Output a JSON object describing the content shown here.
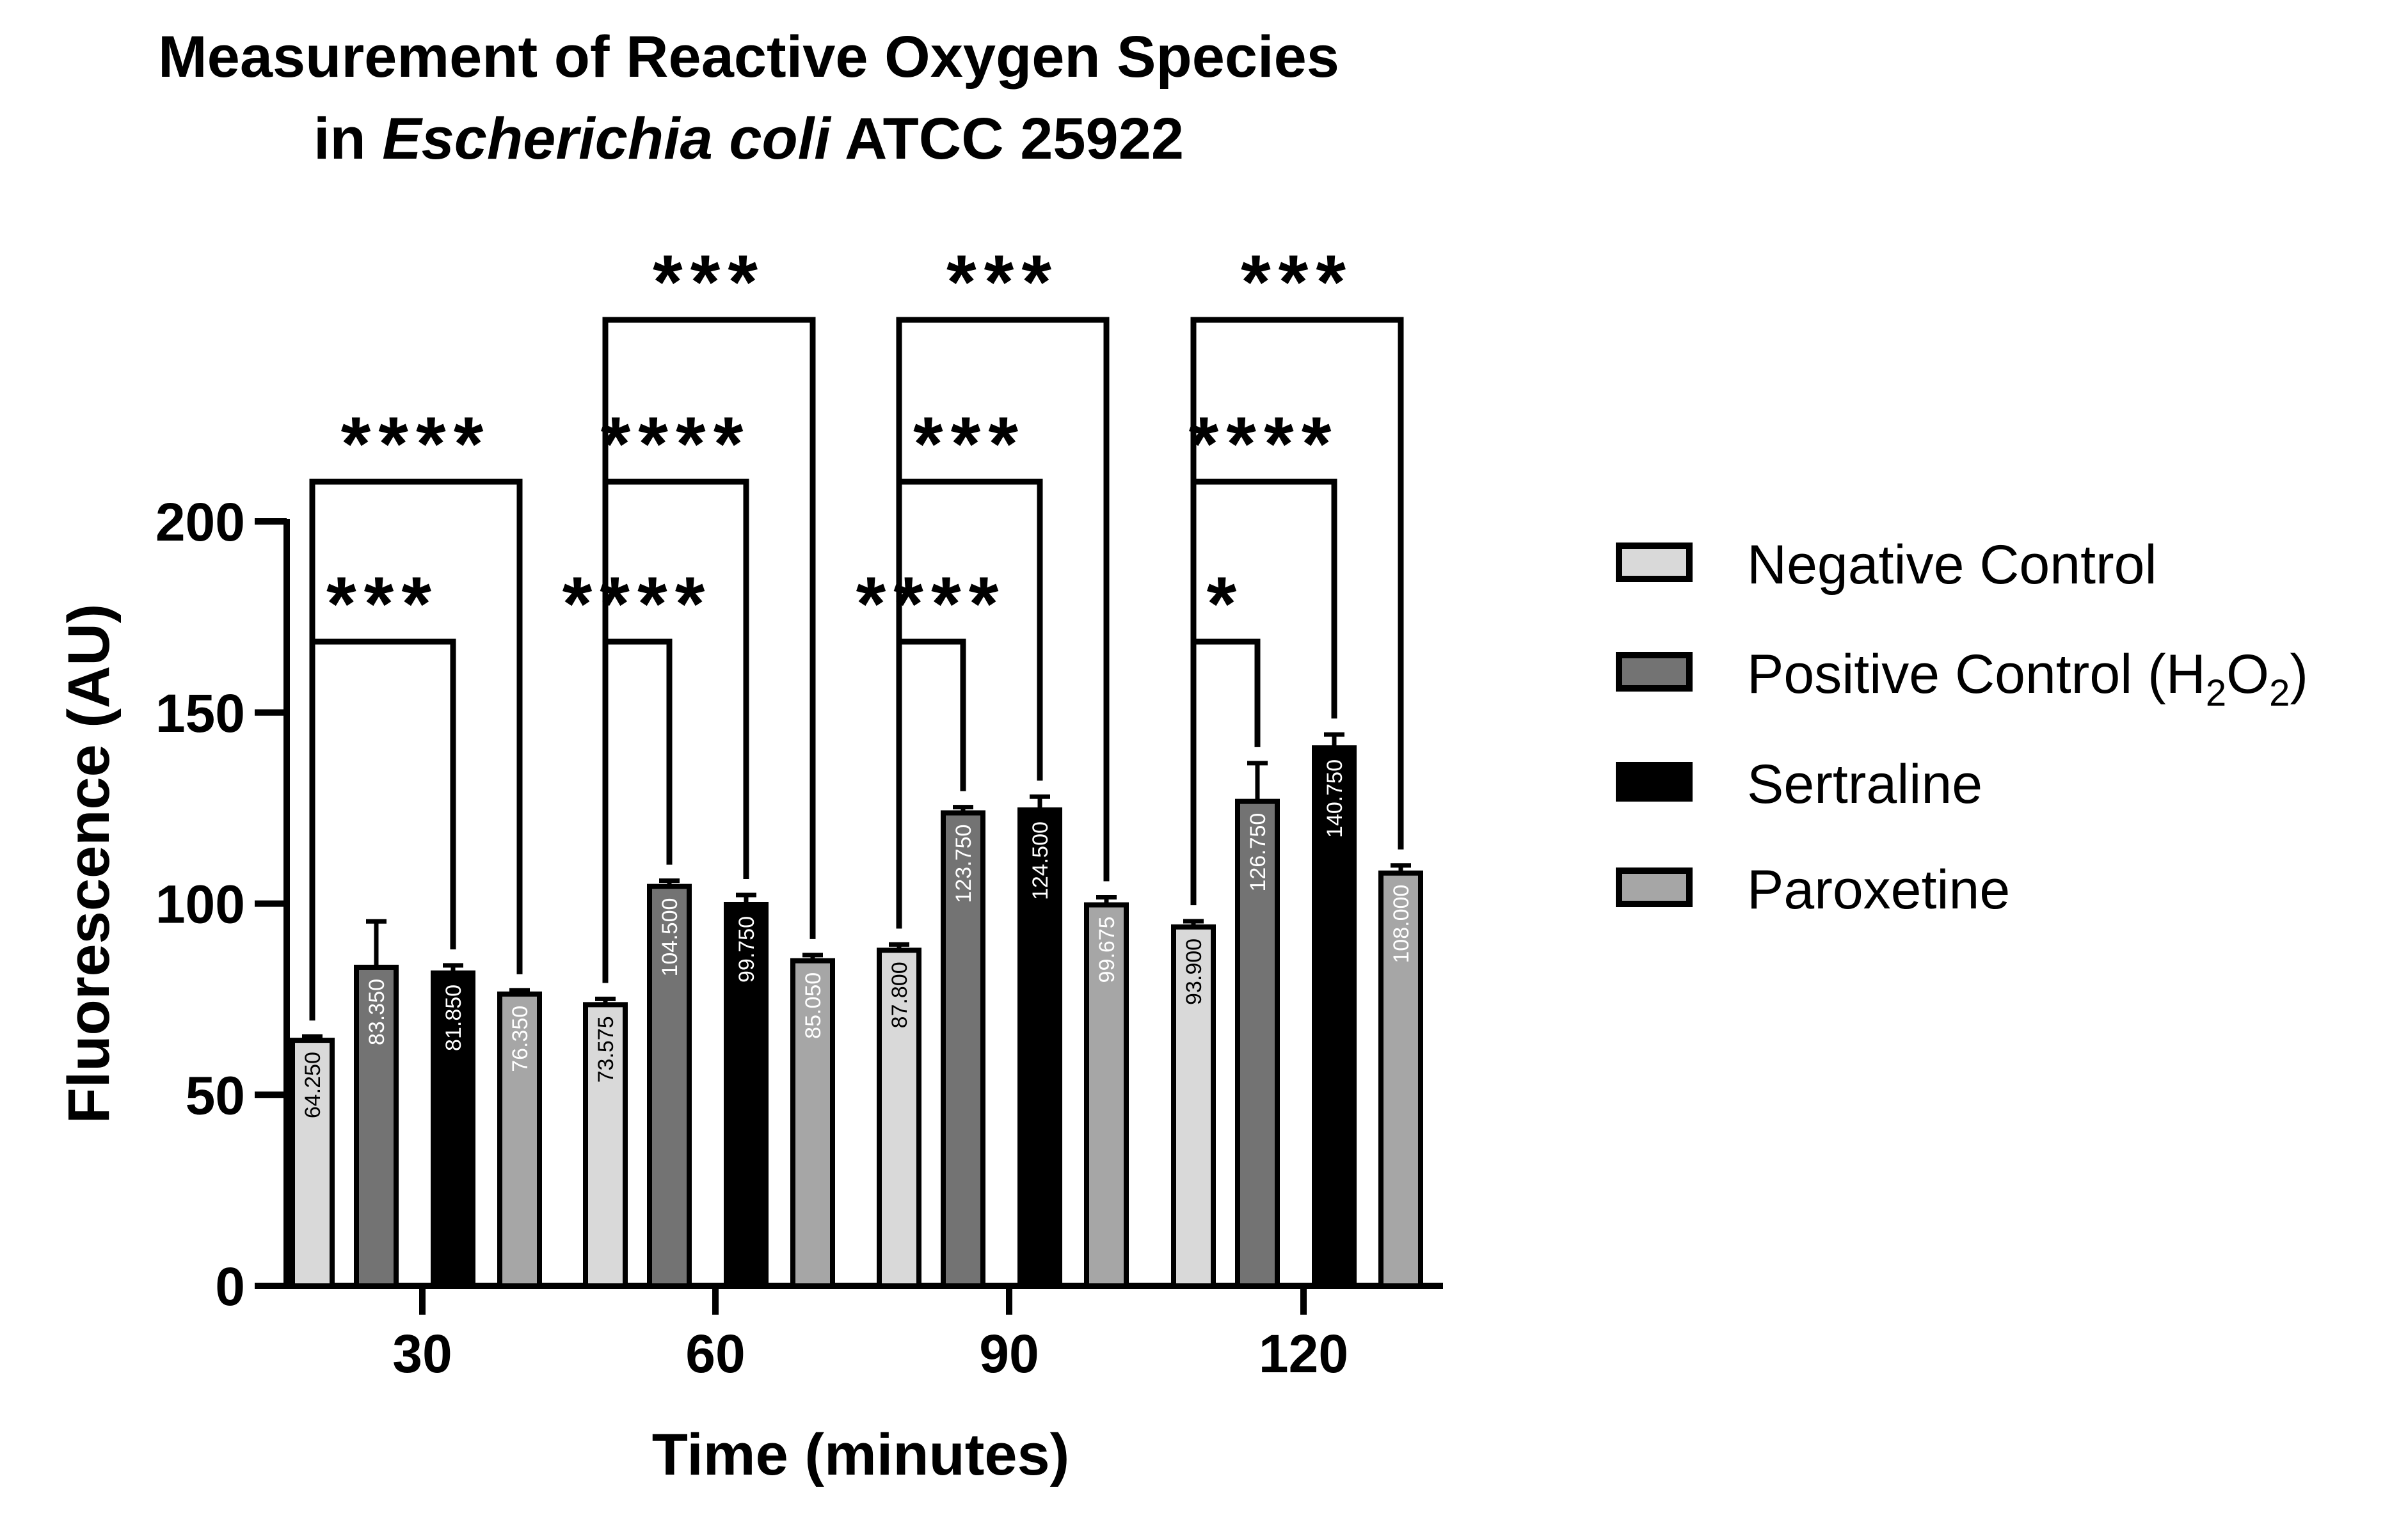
{
  "chart_data": {
    "type": "bar",
    "title": "Measurement of Reactive Oxygen Species",
    "subtitle_prefix": "in ",
    "subtitle_italic": "Escherichia coli",
    "subtitle_suffix": " ATCC 25922",
    "xlabel": "Time (minutes)",
    "ylabel": "Fluorescence (AU)",
    "ylim": [
      0,
      200
    ],
    "yticks": [
      "0",
      "50",
      "100",
      "150",
      "200"
    ],
    "categories": [
      "30",
      "60",
      "90",
      "120"
    ],
    "series": [
      {
        "name": "Negative Control",
        "color": "#d9d9d9",
        "values": [
          64.25,
          73.575,
          87.8,
          93.9
        ],
        "errors": [
          1,
          1.5,
          1.5,
          1.5
        ],
        "labels": [
          "64.250",
          "73.575",
          "87.800",
          "93.900"
        ]
      },
      {
        "name": "Positive Control (H2O2)",
        "name_main": "Positive Control (H",
        "name_sub1": "2",
        "name_mid": "O",
        "name_sub2": "2",
        "name_end": ")",
        "color": "#737373",
        "values": [
          83.35,
          104.5,
          123.75,
          126.75
        ],
        "errors": [
          12,
          1.5,
          1.5,
          10
        ],
        "labels": [
          "83.350",
          "104.500",
          "123.750",
          "126.750"
        ]
      },
      {
        "name": "Sertraline",
        "color": "#000000",
        "values": [
          81.85,
          99.75,
          124.5,
          140.75
        ],
        "errors": [
          2,
          2.5,
          3.5,
          3.5
        ],
        "labels": [
          "81.850",
          "99.750",
          "124.500",
          "140.750"
        ]
      },
      {
        "name": "Paroxetine",
        "color": "#a6a6a6",
        "values": [
          76.35,
          85.05,
          99.675,
          108.0
        ],
        "errors": [
          1,
          1.5,
          2,
          2
        ],
        "labels": [
          "76.350",
          "85.050",
          "99.675",
          "108.000"
        ]
      }
    ],
    "legend_position": "right",
    "significance": [
      {
        "group": 0,
        "from": 0,
        "to": 2,
        "level": 1,
        "label": "***"
      },
      {
        "group": 0,
        "from": 0,
        "to": 3,
        "level": 2,
        "label": "****"
      },
      {
        "group": 1,
        "from": 0,
        "to": 1,
        "level": 1,
        "label": "****"
      },
      {
        "group": 1,
        "from": 0,
        "to": 2,
        "level": 2,
        "label": "****"
      },
      {
        "group": 1,
        "from": 0,
        "to": 3,
        "level": 3,
        "label": "***"
      },
      {
        "group": 2,
        "from": 0,
        "to": 1,
        "level": 1,
        "label": "****"
      },
      {
        "group": 2,
        "from": 0,
        "to": 2,
        "level": 2,
        "label": "***"
      },
      {
        "group": 2,
        "from": 0,
        "to": 3,
        "level": 3,
        "label": "***"
      },
      {
        "group": 3,
        "from": 0,
        "to": 1,
        "level": 1,
        "label": "*"
      },
      {
        "group": 3,
        "from": 0,
        "to": 2,
        "level": 2,
        "label": "****"
      },
      {
        "group": 3,
        "from": 0,
        "to": 3,
        "level": 3,
        "label": "***"
      }
    ]
  }
}
